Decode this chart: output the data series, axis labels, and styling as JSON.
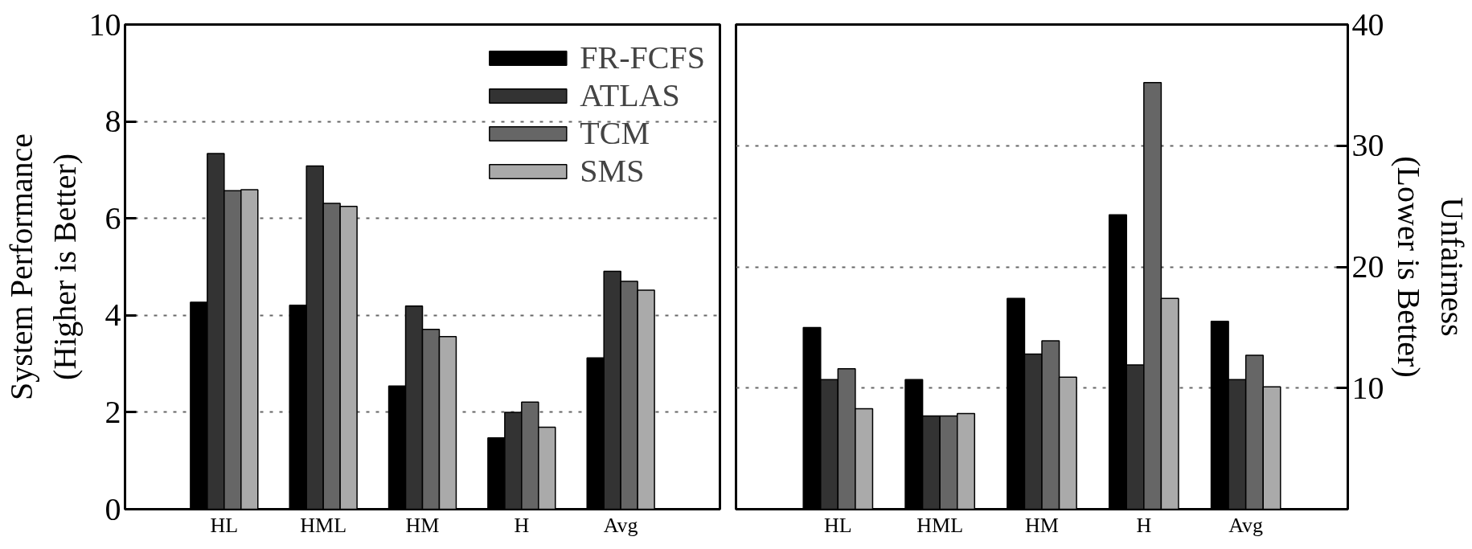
{
  "chart_data": [
    {
      "type": "bar",
      "categories": [
        "HL",
        "HML",
        "HM",
        "H",
        "Avg"
      ],
      "ylabel": "System Performance\n(Higher is Better)",
      "ylim": [
        0,
        10
      ],
      "yticks": [
        0,
        2,
        4,
        6,
        8,
        10
      ],
      "grid": "y",
      "legend": "top right",
      "series": [
        {
          "name": "FR-FCFS",
          "color": "#000000",
          "values": [
            4.27,
            4.21,
            2.54,
            1.47,
            3.12
          ]
        },
        {
          "name": "ATLAS",
          "color": "#333333",
          "values": [
            7.34,
            7.08,
            4.19,
            2.0,
            4.91
          ]
        },
        {
          "name": "TCM",
          "color": "#666666",
          "values": [
            6.57,
            6.31,
            3.71,
            2.21,
            4.7
          ]
        },
        {
          "name": "SMS",
          "color": "#aaaaaa",
          "values": [
            6.59,
            6.25,
            3.56,
            1.69,
            4.52
          ]
        }
      ]
    },
    {
      "type": "bar",
      "categories": [
        "HL",
        "HML",
        "HM",
        "H",
        "Avg"
      ],
      "y2label": "Unfairness\n(Lower is Better)",
      "y2lim": [
        0,
        40
      ],
      "y2ticks": [
        10,
        20,
        30,
        40
      ],
      "grid": "y",
      "series": [
        {
          "color": "#000000",
          "axis": "y2",
          "values": [
            15.0,
            10.7,
            17.4,
            24.3,
            15.5
          ]
        },
        {
          "color": "#333333",
          "axis": "y2",
          "values": [
            10.7,
            7.7,
            12.8,
            11.9,
            10.7
          ]
        },
        {
          "color": "#666666",
          "axis": "y2",
          "values": [
            11.6,
            7.7,
            13.9,
            35.2,
            12.7
          ]
        },
        {
          "color": "#aaaaaa",
          "axis": "y2",
          "values": [
            8.3,
            7.9,
            10.9,
            17.4,
            10.1
          ]
        }
      ]
    }
  ]
}
